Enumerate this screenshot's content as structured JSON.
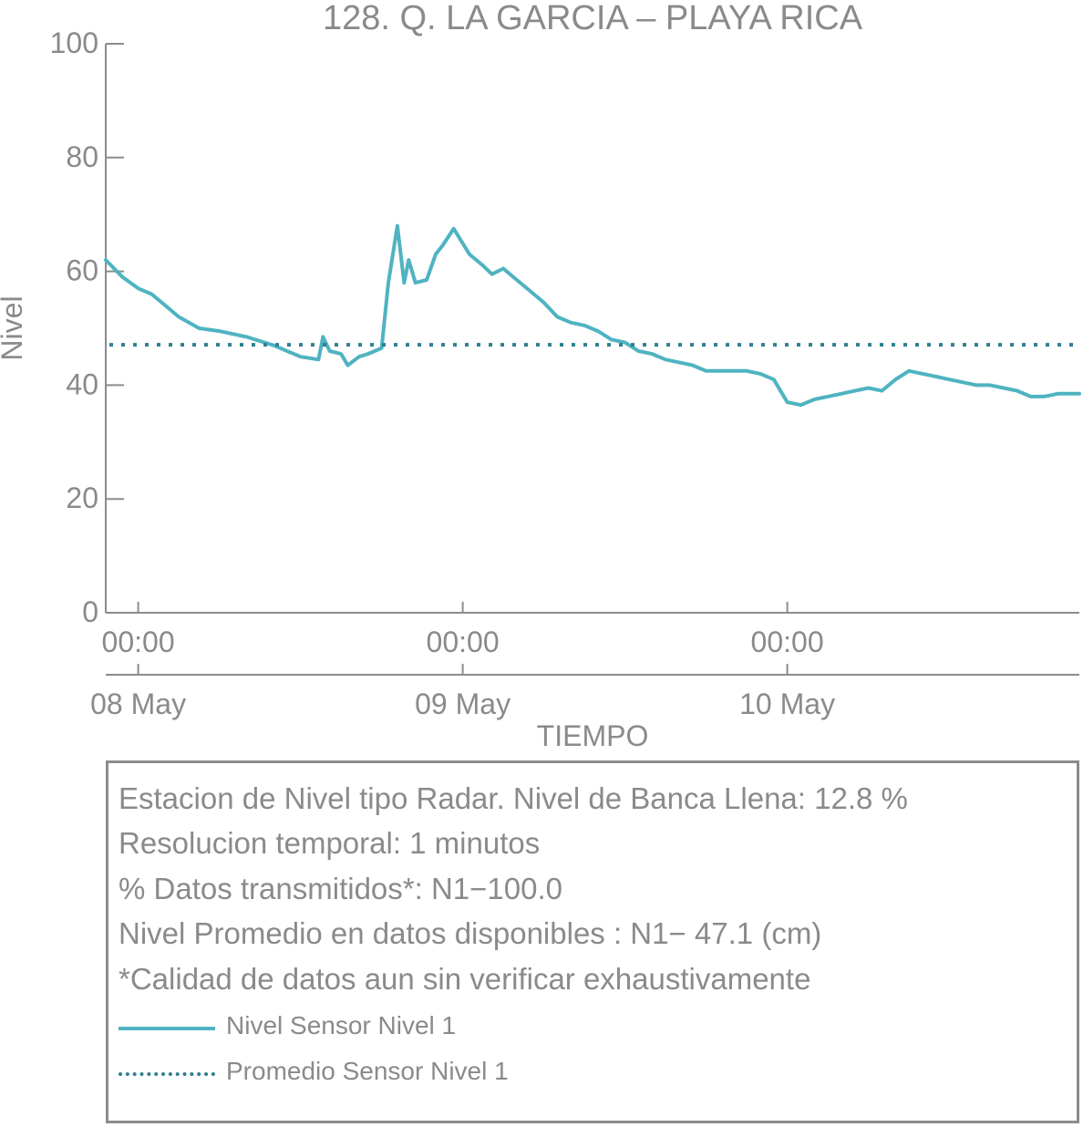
{
  "chart_data": {
    "type": "line",
    "title": "128. Q. LA GARCIA – PLAYA RICA",
    "xlabel": "TIEMPO",
    "ylabel": "Nivel",
    "ylim": [
      0,
      100
    ],
    "yticks": [
      "0",
      "20",
      "40",
      "60",
      "80",
      "100"
    ],
    "xlim": [
      "2023-05-07T21:36",
      "2023-05-10T21:36"
    ],
    "xticks": [
      {
        "at": "2023-05-08T00:00",
        "time": "00:00",
        "date": "08 May"
      },
      {
        "at": "2023-05-09T00:00",
        "time": "00:00",
        "date": "09 May"
      },
      {
        "at": "2023-05-10T00:00",
        "time": "00:00",
        "date": "10 May"
      }
    ],
    "grid": false,
    "series": [
      {
        "name": "Nivel Sensor Nivel 1",
        "style": "solid",
        "color": "#4fb3c1",
        "points": [
          [
            "2023-05-07T21:36",
            62.0
          ],
          [
            "2023-05-07T22:50",
            59.0
          ],
          [
            "2023-05-08T00:00",
            57.0
          ],
          [
            "2023-05-08T01:00",
            56.0
          ],
          [
            "2023-05-08T02:00",
            54.0
          ],
          [
            "2023-05-08T03:00",
            52.0
          ],
          [
            "2023-05-08T04:30",
            50.0
          ],
          [
            "2023-05-08T06:00",
            49.5
          ],
          [
            "2023-05-08T08:00",
            48.5
          ],
          [
            "2023-05-08T10:00",
            47.0
          ],
          [
            "2023-05-08T12:00",
            45.0
          ],
          [
            "2023-05-08T13:20",
            44.5
          ],
          [
            "2023-05-08T13:40",
            48.5
          ],
          [
            "2023-05-08T14:10",
            46.0
          ],
          [
            "2023-05-08T15:00",
            45.5
          ],
          [
            "2023-05-08T15:30",
            43.5
          ],
          [
            "2023-05-08T16:20",
            45.0
          ],
          [
            "2023-05-08T17:00",
            45.5
          ],
          [
            "2023-05-08T18:00",
            46.5
          ],
          [
            "2023-05-08T18:30",
            58.0
          ],
          [
            "2023-05-08T19:10",
            68.0
          ],
          [
            "2023-05-08T19:40",
            58.0
          ],
          [
            "2023-05-08T20:00",
            62.0
          ],
          [
            "2023-05-08T20:30",
            58.0
          ],
          [
            "2023-05-08T21:20",
            58.5
          ],
          [
            "2023-05-08T22:00",
            63.0
          ],
          [
            "2023-05-08T22:30",
            64.5
          ],
          [
            "2023-05-08T23:20",
            67.5
          ],
          [
            "2023-05-09T00:30",
            63.0
          ],
          [
            "2023-05-09T01:30",
            61.0
          ],
          [
            "2023-05-09T02:10",
            59.5
          ],
          [
            "2023-05-09T03:00",
            60.5
          ],
          [
            "2023-05-09T04:00",
            58.5
          ],
          [
            "2023-05-09T05:00",
            56.5
          ],
          [
            "2023-05-09T06:00",
            54.5
          ],
          [
            "2023-05-09T07:00",
            52.0
          ],
          [
            "2023-05-09T08:00",
            51.0
          ],
          [
            "2023-05-09T09:00",
            50.5
          ],
          [
            "2023-05-09T10:00",
            49.5
          ],
          [
            "2023-05-09T11:00",
            48.0
          ],
          [
            "2023-05-09T12:00",
            47.5
          ],
          [
            "2023-05-09T13:00",
            46.0
          ],
          [
            "2023-05-09T14:00",
            45.5
          ],
          [
            "2023-05-09T15:00",
            44.5
          ],
          [
            "2023-05-09T16:00",
            44.0
          ],
          [
            "2023-05-09T17:00",
            43.5
          ],
          [
            "2023-05-09T18:00",
            42.5
          ],
          [
            "2023-05-09T19:00",
            42.5
          ],
          [
            "2023-05-09T20:00",
            42.5
          ],
          [
            "2023-05-09T21:00",
            42.5
          ],
          [
            "2023-05-09T22:00",
            42.0
          ],
          [
            "2023-05-09T23:00",
            41.0
          ],
          [
            "2023-05-10T00:00",
            37.0
          ],
          [
            "2023-05-10T01:00",
            36.5
          ],
          [
            "2023-05-10T02:00",
            37.5
          ],
          [
            "2023-05-10T03:00",
            38.0
          ],
          [
            "2023-05-10T04:00",
            38.5
          ],
          [
            "2023-05-10T05:00",
            39.0
          ],
          [
            "2023-05-10T06:00",
            39.5
          ],
          [
            "2023-05-10T07:00",
            39.0
          ],
          [
            "2023-05-10T08:00",
            41.0
          ],
          [
            "2023-05-10T09:00",
            42.5
          ],
          [
            "2023-05-10T10:00",
            42.0
          ],
          [
            "2023-05-10T11:00",
            41.5
          ],
          [
            "2023-05-10T12:00",
            41.0
          ],
          [
            "2023-05-10T13:00",
            40.5
          ],
          [
            "2023-05-10T14:00",
            40.0
          ],
          [
            "2023-05-10T15:00",
            40.0
          ],
          [
            "2023-05-10T16:00",
            39.5
          ],
          [
            "2023-05-10T17:00",
            39.0
          ],
          [
            "2023-05-10T18:00",
            38.0
          ],
          [
            "2023-05-10T19:00",
            38.0
          ],
          [
            "2023-05-10T20:00",
            38.5
          ],
          [
            "2023-05-10T21:36",
            38.5
          ]
        ]
      },
      {
        "name": "Promedio Sensor Nivel 1",
        "style": "dotted",
        "color": "#2f7f91",
        "constant": 47.1
      }
    ]
  },
  "info_box": {
    "lines": [
      "Estacion de Nivel tipo Radar. Nivel de Banca Llena: 12.8 %",
      "Resolucion temporal: 1 minutos",
      "% Datos transmitidos*: N1−100.0",
      "Nivel Promedio en datos disponibles : N1− 47.1 (cm)",
      "*Calidad de datos aun sin verificar exhaustivamente"
    ],
    "legend": [
      {
        "label": "Nivel Sensor Nivel 1",
        "style": "solid"
      },
      {
        "label": "Promedio Sensor Nivel 1",
        "style": "dotted"
      }
    ]
  }
}
